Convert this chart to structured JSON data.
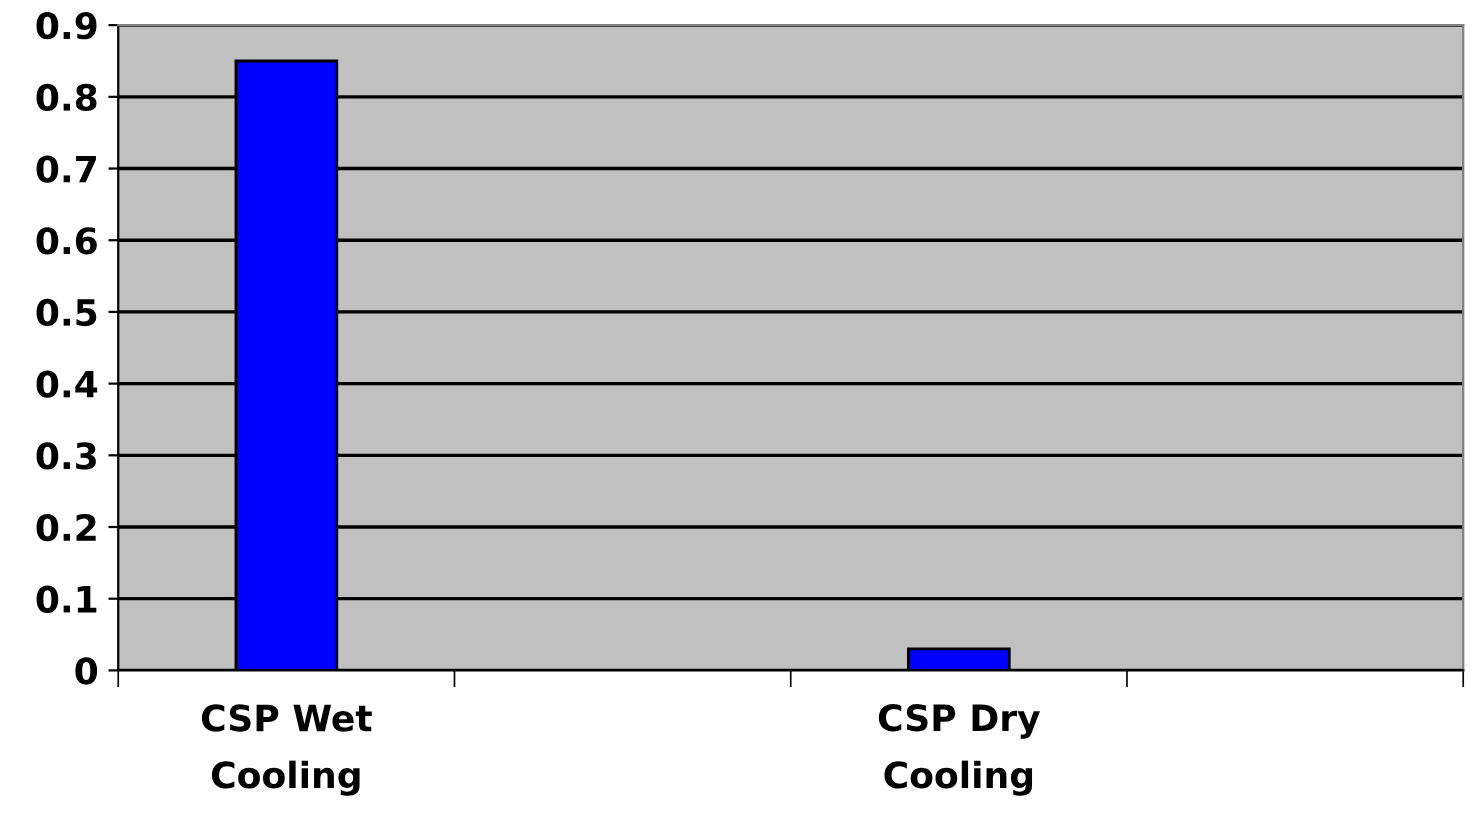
{
  "chart_data": {
    "type": "bar",
    "categories": [
      "CSP Wet\nCooling",
      null,
      "CSP Dry\nCooling",
      null
    ],
    "values": [
      0.85,
      null,
      0.03,
      null
    ],
    "color": "#0000ff",
    "ylim": [
      0,
      0.9
    ],
    "yticks": [
      0,
      0.1,
      0.2,
      0.3,
      0.4,
      0.5,
      0.6,
      0.7,
      0.8,
      0.9
    ],
    "grid": "y"
  }
}
